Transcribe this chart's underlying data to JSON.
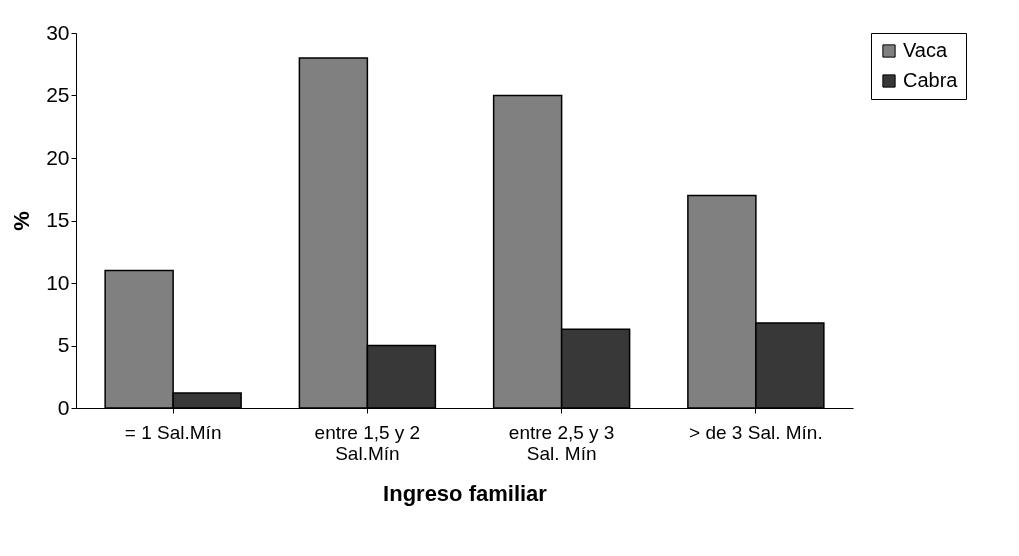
{
  "chart_data": {
    "type": "bar",
    "xlabel": "Ingreso familiar",
    "ylabel": "%",
    "categories": [
      "= 1 Sal.Mín",
      "entre 1,5 y 2 Sal.Mín",
      "entre 2,5 y 3 Sal. Mín",
      "> de 3 Sal. Mín."
    ],
    "series": [
      {
        "name": "Vaca",
        "color": "#808080",
        "values": [
          11,
          28,
          25,
          17
        ]
      },
      {
        "name": "Cabra",
        "color": "#383838",
        "values": [
          1.2,
          5,
          6.3,
          6.8
        ]
      }
    ],
    "ylim": [
      0,
      30
    ],
    "yticks": [
      0,
      5,
      10,
      15,
      20,
      25,
      30
    ],
    "grid": false,
    "legend": "right"
  }
}
